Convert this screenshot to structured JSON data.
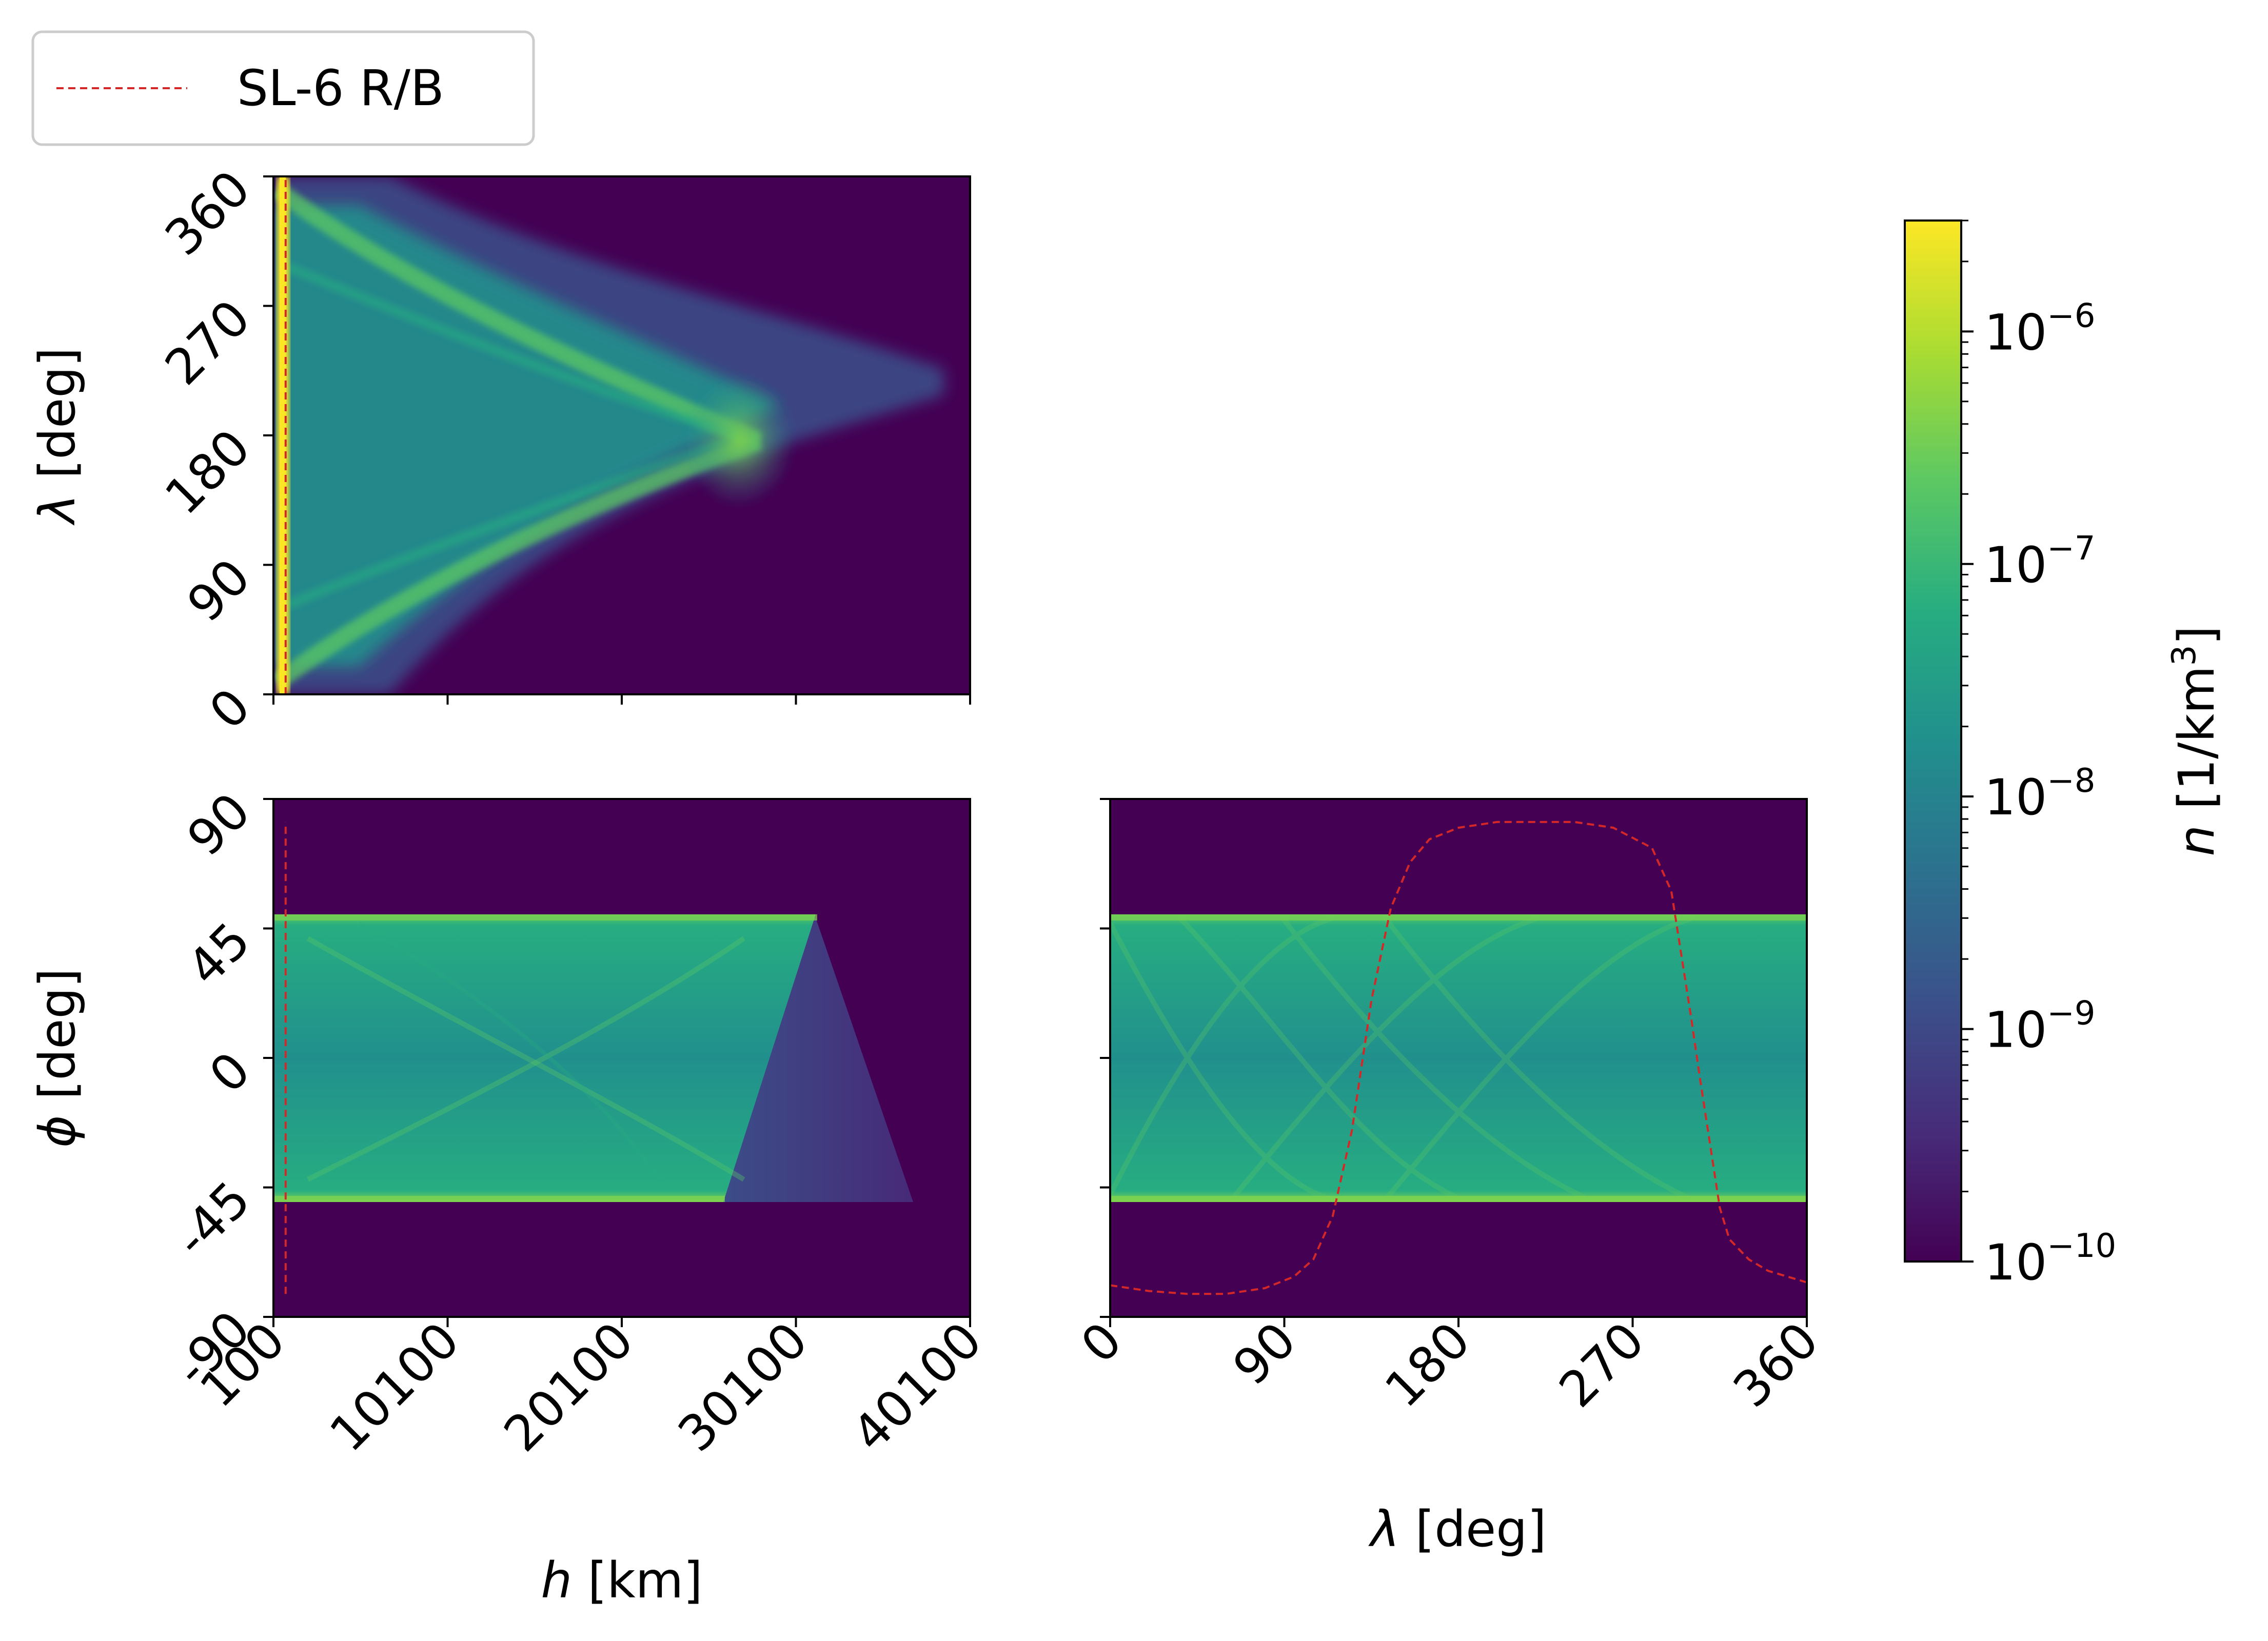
{
  "colors": {
    "background_low": "#440154",
    "sl6_line": "#d62728",
    "viridis": [
      "#440154",
      "#472c7a",
      "#3b518b",
      "#2c718e",
      "#21908d",
      "#27ad81",
      "#5cc863",
      "#aadc32",
      "#fde725"
    ]
  },
  "legend": {
    "entries": [
      {
        "label": "SL-6 R/B",
        "style": "dashed",
        "color": "#d62728"
      }
    ]
  },
  "chart_data": [
    {
      "id": "lambda-vs-h",
      "type": "heatmap",
      "xlabel": "",
      "ylabel_symbol": "λ",
      "ylabel_unit": " [deg]",
      "x_range": [
        100,
        40100
      ],
      "y_range": [
        0,
        360
      ],
      "x_ticks": [
        100,
        10100,
        20100,
        30100,
        40100
      ],
      "x_tick_labels": [
        "",
        "",
        "",
        "",
        ""
      ],
      "y_ticks": [
        0,
        90,
        180,
        270,
        360
      ],
      "y_tick_labels": [
        "0",
        "90",
        "180",
        "270",
        "360"
      ],
      "sl6_track": {
        "x": [
          800,
          800
        ],
        "y": [
          0,
          360
        ]
      }
    },
    {
      "id": "phi-vs-h",
      "type": "heatmap",
      "xlabel_symbol": "h",
      "xlabel_unit": " [km]",
      "ylabel_symbol": "ϕ",
      "ylabel_unit": " [deg]",
      "x_range": [
        100,
        40100
      ],
      "y_range": [
        -90,
        90
      ],
      "x_ticks": [
        100,
        10100,
        20100,
        30100,
        40100
      ],
      "x_tick_labels": [
        "100",
        "10100",
        "20100",
        "30100",
        "40100"
      ],
      "y_ticks": [
        -90,
        -45,
        0,
        45,
        90
      ],
      "y_tick_labels": [
        "-90",
        "-45",
        "0",
        "45",
        "90"
      ],
      "band": [
        -50,
        50
      ],
      "sl6_track": {
        "x": [
          800,
          800
        ],
        "y": [
          -82,
          82
        ]
      }
    },
    {
      "id": "phi-vs-lambda",
      "type": "heatmap",
      "xlabel_symbol": "λ",
      "xlabel_unit": " [deg]",
      "ylabel": "",
      "x_range": [
        0,
        360
      ],
      "y_range": [
        -90,
        90
      ],
      "x_ticks": [
        0,
        90,
        180,
        270,
        360
      ],
      "x_tick_labels": [
        "0",
        "90",
        "180",
        "270",
        "360"
      ],
      "y_ticks": [
        -90,
        -45,
        0,
        45,
        90
      ],
      "y_tick_labels": [
        "",
        "",
        "",
        "",
        ""
      ],
      "band": [
        -50,
        50
      ],
      "sl6_track": {
        "x": [
          0,
          20,
          40,
          60,
          80,
          95,
          105,
          115,
          125,
          135,
          145,
          155,
          165,
          180,
          200,
          220,
          240,
          260,
          280,
          290,
          300,
          305,
          310,
          315,
          320,
          330,
          340,
          350,
          360
        ],
        "y": [
          -79,
          -81,
          -82,
          -82,
          -80,
          -76,
          -70,
          -55,
          -25,
          20,
          52,
          68,
          76,
          80,
          82,
          82,
          82,
          80,
          73,
          58,
          15,
          -8,
          -30,
          -52,
          -63,
          -70,
          -74,
          -76,
          -78
        ]
      }
    }
  ],
  "colorbar": {
    "scale": "log",
    "range": [
      1e-10,
      3e-06
    ],
    "label_symbol": "n",
    "label_unit": " [1/km",
    "label_exp": "3",
    "label_close": "]",
    "major_ticks": [
      {
        "value": 1e-10,
        "base": "10",
        "exp": "−10"
      },
      {
        "value": 1e-09,
        "base": "10",
        "exp": "−9"
      },
      {
        "value": 1e-08,
        "base": "10",
        "exp": "−8"
      },
      {
        "value": 1e-07,
        "base": "10",
        "exp": "−7"
      },
      {
        "value": 1e-06,
        "base": "10",
        "exp": "−6"
      }
    ]
  }
}
